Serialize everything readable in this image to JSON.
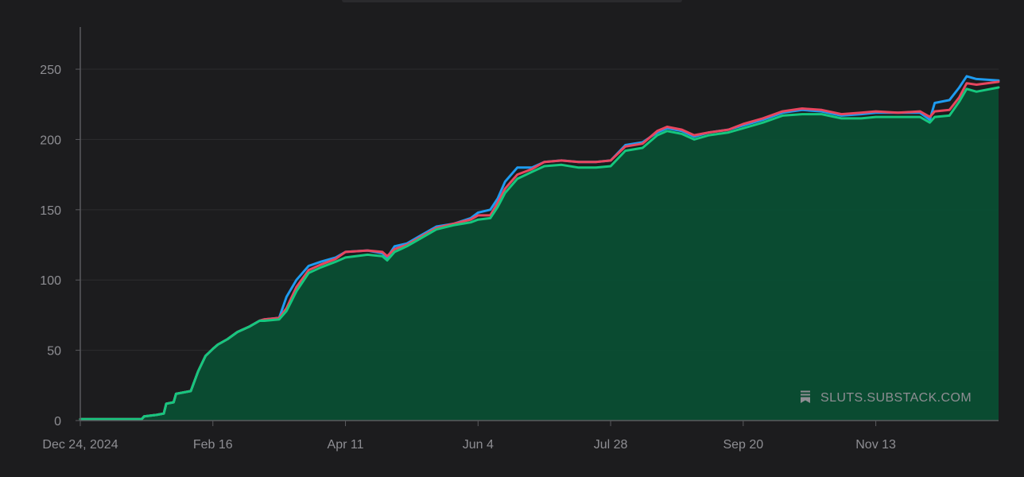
{
  "colors": {
    "background": "#1c1c1e",
    "grid": "#2c2c2e",
    "axis": "#5a5a5e",
    "tick_text": "#8e8e93",
    "area_fill": "#0a4e33",
    "series_blue": "#1e9bf0",
    "series_red": "#e8465f",
    "series_green": "#16c77e"
  },
  "watermark": {
    "icon": "substack-bookmark-icon",
    "text": "SLUTS.SUBSTACK.COM"
  },
  "chart_data": {
    "type": "area",
    "xlabel": "",
    "ylabel": "",
    "x_range": [
      "2024-12-24",
      "2026-01-02"
    ],
    "ylim": [
      0,
      280
    ],
    "yticks": [
      0,
      50,
      100,
      150,
      200,
      250
    ],
    "xticks": [
      {
        "date": "2024-12-24",
        "label": "Dec 24, 2024"
      },
      {
        "date": "2025-02-16",
        "label": "Feb 16"
      },
      {
        "date": "2025-04-11",
        "label": "Apr 11"
      },
      {
        "date": "2025-06-04",
        "label": "Jun 4"
      },
      {
        "date": "2025-07-28",
        "label": "Jul 28"
      },
      {
        "date": "2025-09-20",
        "label": "Sep 20"
      },
      {
        "date": "2025-11-13",
        "label": "Nov 13"
      }
    ],
    "grid": "horizontal",
    "series": [
      {
        "color": "#1e9bf0",
        "points": [
          [
            "2024-12-24",
            1
          ],
          [
            "2025-01-18",
            1
          ],
          [
            "2025-01-19",
            3
          ],
          [
            "2025-01-24",
            4
          ],
          [
            "2025-01-27",
            5
          ],
          [
            "2025-01-28",
            12
          ],
          [
            "2025-01-31",
            13
          ],
          [
            "2025-02-01",
            19
          ],
          [
            "2025-02-07",
            21
          ],
          [
            "2025-02-10",
            35
          ],
          [
            "2025-02-13",
            46
          ],
          [
            "2025-02-16",
            51
          ],
          [
            "2025-02-18",
            54
          ],
          [
            "2025-02-22",
            58
          ],
          [
            "2025-02-26",
            63
          ],
          [
            "2025-03-03",
            67
          ],
          [
            "2025-03-07",
            71
          ],
          [
            "2025-03-09",
            72
          ],
          [
            "2025-03-15",
            73
          ],
          [
            "2025-03-18",
            88
          ],
          [
            "2025-03-22",
            100
          ],
          [
            "2025-03-27",
            110
          ],
          [
            "2025-04-01",
            113
          ],
          [
            "2025-04-07",
            116
          ],
          [
            "2025-04-11",
            120
          ],
          [
            "2025-04-20",
            121
          ],
          [
            "2025-04-26",
            119
          ],
          [
            "2025-04-28",
            116
          ],
          [
            "2025-05-01",
            124
          ],
          [
            "2025-05-06",
            126
          ],
          [
            "2025-05-12",
            132
          ],
          [
            "2025-05-18",
            138
          ],
          [
            "2025-05-25",
            140
          ],
          [
            "2025-06-01",
            144
          ],
          [
            "2025-06-04",
            148
          ],
          [
            "2025-06-09",
            150
          ],
          [
            "2025-06-12",
            158
          ],
          [
            "2025-06-15",
            170
          ],
          [
            "2025-06-20",
            180
          ],
          [
            "2025-06-26",
            180
          ],
          [
            "2025-07-01",
            184
          ],
          [
            "2025-07-08",
            185
          ],
          [
            "2025-07-15",
            184
          ],
          [
            "2025-07-22",
            184
          ],
          [
            "2025-07-28",
            185
          ],
          [
            "2025-08-03",
            196
          ],
          [
            "2025-08-10",
            198
          ],
          [
            "2025-08-16",
            205
          ],
          [
            "2025-08-20",
            208
          ],
          [
            "2025-08-26",
            206
          ],
          [
            "2025-08-31",
            202
          ],
          [
            "2025-09-06",
            205
          ],
          [
            "2025-09-14",
            207
          ],
          [
            "2025-09-20",
            210
          ],
          [
            "2025-09-28",
            214
          ],
          [
            "2025-10-06",
            219
          ],
          [
            "2025-10-14",
            221
          ],
          [
            "2025-10-22",
            220
          ],
          [
            "2025-10-30",
            217
          ],
          [
            "2025-11-07",
            218
          ],
          [
            "2025-11-13",
            219
          ],
          [
            "2025-11-22",
            219
          ],
          [
            "2025-12-01",
            219
          ],
          [
            "2025-12-05",
            214
          ],
          [
            "2025-12-07",
            226
          ],
          [
            "2025-12-13",
            228
          ],
          [
            "2025-12-17",
            237
          ],
          [
            "2025-12-20",
            245
          ],
          [
            "2025-12-24",
            243
          ],
          [
            "2026-01-02",
            242
          ]
        ]
      },
      {
        "color": "#e8465f",
        "points": [
          [
            "2024-12-24",
            1
          ],
          [
            "2025-01-18",
            1
          ],
          [
            "2025-01-19",
            3
          ],
          [
            "2025-01-24",
            4
          ],
          [
            "2025-01-27",
            5
          ],
          [
            "2025-01-28",
            12
          ],
          [
            "2025-01-31",
            13
          ],
          [
            "2025-02-01",
            19
          ],
          [
            "2025-02-07",
            21
          ],
          [
            "2025-02-10",
            35
          ],
          [
            "2025-02-13",
            46
          ],
          [
            "2025-02-16",
            51
          ],
          [
            "2025-02-18",
            54
          ],
          [
            "2025-02-22",
            58
          ],
          [
            "2025-02-26",
            63
          ],
          [
            "2025-03-03",
            67
          ],
          [
            "2025-03-07",
            71
          ],
          [
            "2025-03-09",
            72
          ],
          [
            "2025-03-15",
            73
          ],
          [
            "2025-03-18",
            80
          ],
          [
            "2025-03-22",
            95
          ],
          [
            "2025-03-27",
            107
          ],
          [
            "2025-04-01",
            111
          ],
          [
            "2025-04-07",
            115
          ],
          [
            "2025-04-11",
            120
          ],
          [
            "2025-04-20",
            121
          ],
          [
            "2025-04-26",
            120
          ],
          [
            "2025-04-28",
            117
          ],
          [
            "2025-05-01",
            122
          ],
          [
            "2025-05-06",
            125
          ],
          [
            "2025-05-12",
            131
          ],
          [
            "2025-05-18",
            137
          ],
          [
            "2025-05-25",
            140
          ],
          [
            "2025-06-01",
            143
          ],
          [
            "2025-06-04",
            146
          ],
          [
            "2025-06-09",
            146
          ],
          [
            "2025-06-12",
            155
          ],
          [
            "2025-06-15",
            165
          ],
          [
            "2025-06-20",
            175
          ],
          [
            "2025-06-26",
            179
          ],
          [
            "2025-07-01",
            184
          ],
          [
            "2025-07-08",
            185
          ],
          [
            "2025-07-15",
            184
          ],
          [
            "2025-07-22",
            184
          ],
          [
            "2025-07-28",
            185
          ],
          [
            "2025-08-03",
            195
          ],
          [
            "2025-08-10",
            197
          ],
          [
            "2025-08-16",
            206
          ],
          [
            "2025-08-20",
            209
          ],
          [
            "2025-08-26",
            207
          ],
          [
            "2025-08-31",
            203
          ],
          [
            "2025-09-06",
            205
          ],
          [
            "2025-09-14",
            207
          ],
          [
            "2025-09-20",
            211
          ],
          [
            "2025-09-28",
            215
          ],
          [
            "2025-10-06",
            220
          ],
          [
            "2025-10-14",
            222
          ],
          [
            "2025-10-22",
            221
          ],
          [
            "2025-10-30",
            218
          ],
          [
            "2025-11-07",
            219
          ],
          [
            "2025-11-13",
            220
          ],
          [
            "2025-11-22",
            219
          ],
          [
            "2025-12-01",
            220
          ],
          [
            "2025-12-05",
            216
          ],
          [
            "2025-12-07",
            220
          ],
          [
            "2025-12-13",
            221
          ],
          [
            "2025-12-17",
            230
          ],
          [
            "2025-12-20",
            240
          ],
          [
            "2025-12-24",
            239
          ],
          [
            "2026-01-02",
            241
          ]
        ]
      },
      {
        "color": "#16c77e",
        "points": [
          [
            "2024-12-24",
            1
          ],
          [
            "2025-01-18",
            1
          ],
          [
            "2025-01-19",
            3
          ],
          [
            "2025-01-24",
            4
          ],
          [
            "2025-01-27",
            5
          ],
          [
            "2025-01-28",
            12
          ],
          [
            "2025-01-31",
            13
          ],
          [
            "2025-02-01",
            19
          ],
          [
            "2025-02-07",
            21
          ],
          [
            "2025-02-10",
            35
          ],
          [
            "2025-02-13",
            46
          ],
          [
            "2025-02-16",
            51
          ],
          [
            "2025-02-18",
            54
          ],
          [
            "2025-02-22",
            58
          ],
          [
            "2025-02-26",
            63
          ],
          [
            "2025-03-03",
            67
          ],
          [
            "2025-03-07",
            71
          ],
          [
            "2025-03-09",
            71
          ],
          [
            "2025-03-15",
            72
          ],
          [
            "2025-03-18",
            78
          ],
          [
            "2025-03-22",
            92
          ],
          [
            "2025-03-27",
            105
          ],
          [
            "2025-04-01",
            109
          ],
          [
            "2025-04-07",
            113
          ],
          [
            "2025-04-11",
            116
          ],
          [
            "2025-04-20",
            118
          ],
          [
            "2025-04-26",
            117
          ],
          [
            "2025-04-28",
            114
          ],
          [
            "2025-05-01",
            120
          ],
          [
            "2025-05-06",
            124
          ],
          [
            "2025-05-12",
            130
          ],
          [
            "2025-05-18",
            136
          ],
          [
            "2025-05-25",
            139
          ],
          [
            "2025-06-01",
            141
          ],
          [
            "2025-06-04",
            143
          ],
          [
            "2025-06-09",
            144
          ],
          [
            "2025-06-12",
            152
          ],
          [
            "2025-06-15",
            162
          ],
          [
            "2025-06-20",
            172
          ],
          [
            "2025-06-26",
            177
          ],
          [
            "2025-07-01",
            181
          ],
          [
            "2025-07-08",
            182
          ],
          [
            "2025-07-15",
            180
          ],
          [
            "2025-07-22",
            180
          ],
          [
            "2025-07-28",
            181
          ],
          [
            "2025-08-03",
            192
          ],
          [
            "2025-08-10",
            194
          ],
          [
            "2025-08-16",
            203
          ],
          [
            "2025-08-20",
            206
          ],
          [
            "2025-08-26",
            204
          ],
          [
            "2025-08-31",
            200
          ],
          [
            "2025-09-06",
            203
          ],
          [
            "2025-09-14",
            205
          ],
          [
            "2025-09-20",
            208
          ],
          [
            "2025-09-28",
            212
          ],
          [
            "2025-10-06",
            217
          ],
          [
            "2025-10-14",
            218
          ],
          [
            "2025-10-22",
            218
          ],
          [
            "2025-10-30",
            215
          ],
          [
            "2025-11-07",
            215
          ],
          [
            "2025-11-13",
            216
          ],
          [
            "2025-11-22",
            216
          ],
          [
            "2025-12-01",
            216
          ],
          [
            "2025-12-05",
            212
          ],
          [
            "2025-12-07",
            216
          ],
          [
            "2025-12-13",
            217
          ],
          [
            "2025-12-17",
            227
          ],
          [
            "2025-12-20",
            236
          ],
          [
            "2025-12-24",
            234
          ],
          [
            "2026-01-02",
            237
          ]
        ]
      }
    ]
  }
}
